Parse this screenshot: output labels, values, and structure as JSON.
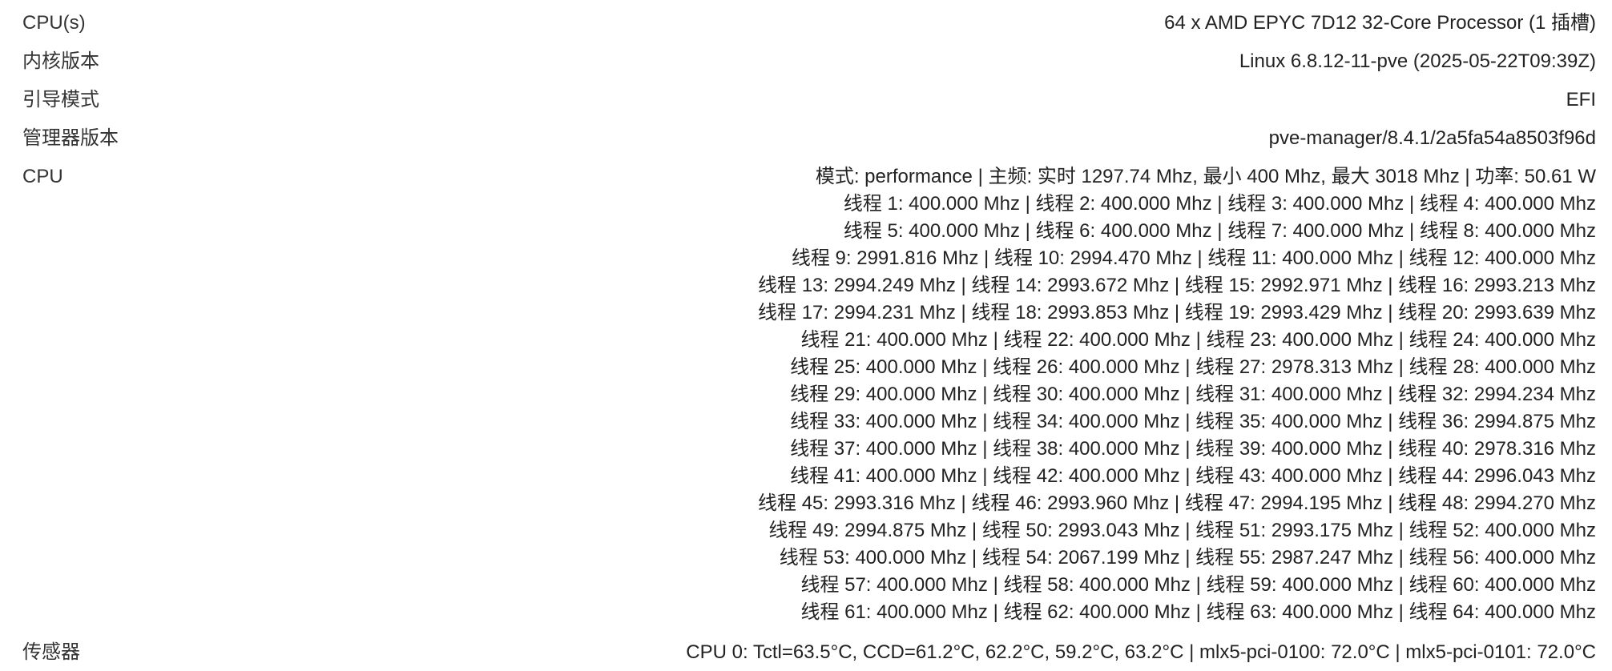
{
  "rows": {
    "cpus": {
      "label": "CPU(s)",
      "value": "64 x AMD EPYC 7D12 32-Core Processor (1 插槽)"
    },
    "kernel": {
      "label": "内核版本",
      "value": "Linux 6.8.12-11-pve (2025-05-22T09:39Z)"
    },
    "boot": {
      "label": "引导模式",
      "value": "EFI"
    },
    "manager": {
      "label": "管理器版本",
      "value": "pve-manager/8.4.1/2a5fa54a8503f96d"
    },
    "cpu": {
      "label": "CPU",
      "lines": [
        "模式: performance | 主频: 实时 1297.74 Mhz, 最小 400 Mhz, 最大 3018 Mhz | 功率: 50.61 W",
        "线程 1: 400.000 Mhz | 线程 2: 400.000 Mhz | 线程 3: 400.000 Mhz | 线程 4: 400.000 Mhz",
        "线程 5: 400.000 Mhz | 线程 6: 400.000 Mhz | 线程 7: 400.000 Mhz | 线程 8: 400.000 Mhz",
        "线程 9: 2991.816 Mhz | 线程 10: 2994.470 Mhz | 线程 11: 400.000 Mhz | 线程 12: 400.000 Mhz",
        "线程 13: 2994.249 Mhz | 线程 14: 2993.672 Mhz | 线程 15: 2992.971 Mhz | 线程 16: 2993.213 Mhz",
        "线程 17: 2994.231 Mhz | 线程 18: 2993.853 Mhz | 线程 19: 2993.429 Mhz | 线程 20: 2993.639 Mhz",
        "线程 21: 400.000 Mhz | 线程 22: 400.000 Mhz | 线程 23: 400.000 Mhz | 线程 24: 400.000 Mhz",
        "线程 25: 400.000 Mhz | 线程 26: 400.000 Mhz | 线程 27: 2978.313 Mhz | 线程 28: 400.000 Mhz",
        "线程 29: 400.000 Mhz | 线程 30: 400.000 Mhz | 线程 31: 400.000 Mhz | 线程 32: 2994.234 Mhz",
        "线程 33: 400.000 Mhz | 线程 34: 400.000 Mhz | 线程 35: 400.000 Mhz | 线程 36: 2994.875 Mhz",
        "线程 37: 400.000 Mhz | 线程 38: 400.000 Mhz | 线程 39: 400.000 Mhz | 线程 40: 2978.316 Mhz",
        "线程 41: 400.000 Mhz | 线程 42: 400.000 Mhz | 线程 43: 400.000 Mhz | 线程 44: 2996.043 Mhz",
        "线程 45: 2993.316 Mhz | 线程 46: 2993.960 Mhz | 线程 47: 2994.195 Mhz | 线程 48: 2994.270 Mhz",
        "线程 49: 2994.875 Mhz | 线程 50: 2993.043 Mhz | 线程 51: 2993.175 Mhz | 线程 52: 400.000 Mhz",
        "线程 53: 400.000 Mhz | 线程 54: 2067.199 Mhz | 线程 55: 2987.247 Mhz | 线程 56: 400.000 Mhz",
        "线程 57: 400.000 Mhz | 线程 58: 400.000 Mhz | 线程 59: 400.000 Mhz | 线程 60: 400.000 Mhz",
        "线程 61: 400.000 Mhz | 线程 62: 400.000 Mhz | 线程 63: 400.000 Mhz | 线程 64: 400.000 Mhz"
      ]
    },
    "sensor": {
      "label": "传感器",
      "value": "CPU 0: Tctl=63.5°C, CCD=61.2°C, 62.2°C, 59.2°C, 63.2°C | mlx5-pci-0100: 72.0°C | mlx5-pci-0101: 72.0°C"
    }
  }
}
